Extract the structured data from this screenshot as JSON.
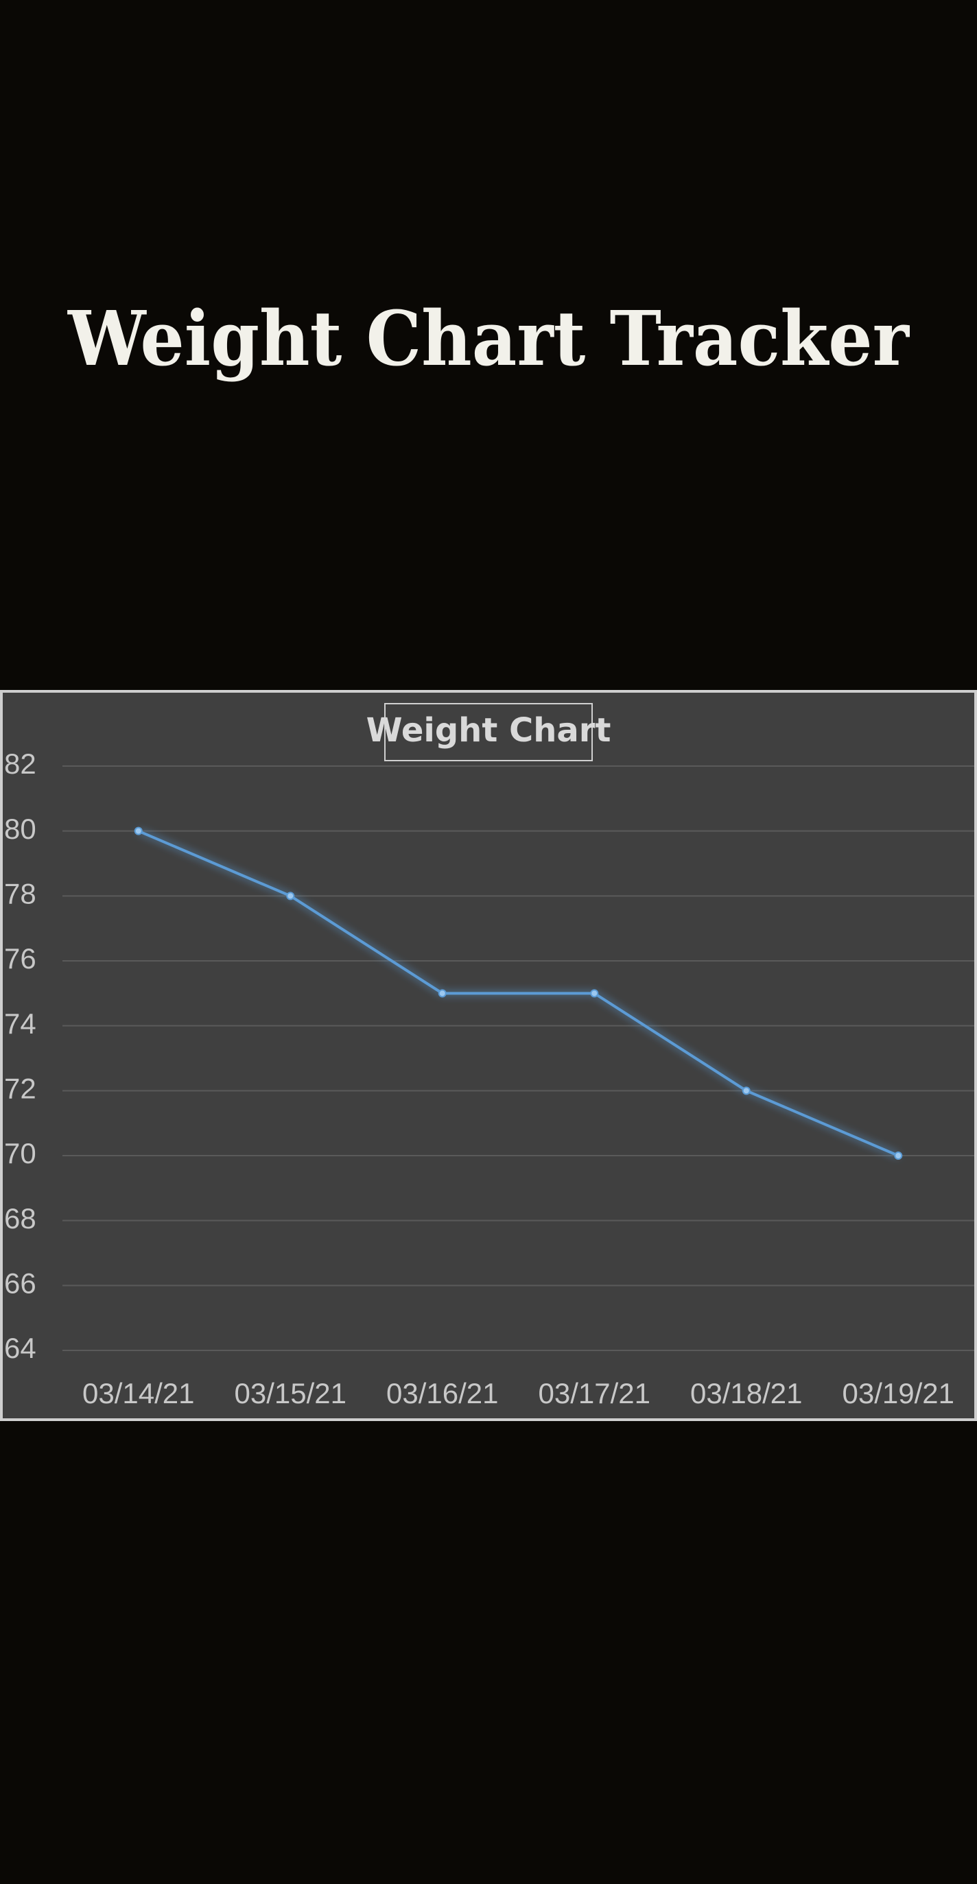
{
  "header": {
    "title": "Weight Chart Tracker"
  },
  "chart_data": {
    "type": "line",
    "title": "Weight Chart",
    "categories": [
      "03/14/21",
      "03/15/21",
      "03/16/21",
      "03/17/21",
      "03/18/21",
      "03/19/21"
    ],
    "series": [
      {
        "name": "Weight",
        "color": "#5b9bd5",
        "values": [
          80,
          78,
          75,
          75,
          72,
          70
        ]
      }
    ],
    "ylim": [
      64,
      82
    ],
    "yticks": [
      64,
      66,
      68,
      70,
      72,
      74,
      76,
      78,
      80,
      82
    ],
    "grid": true
  }
}
